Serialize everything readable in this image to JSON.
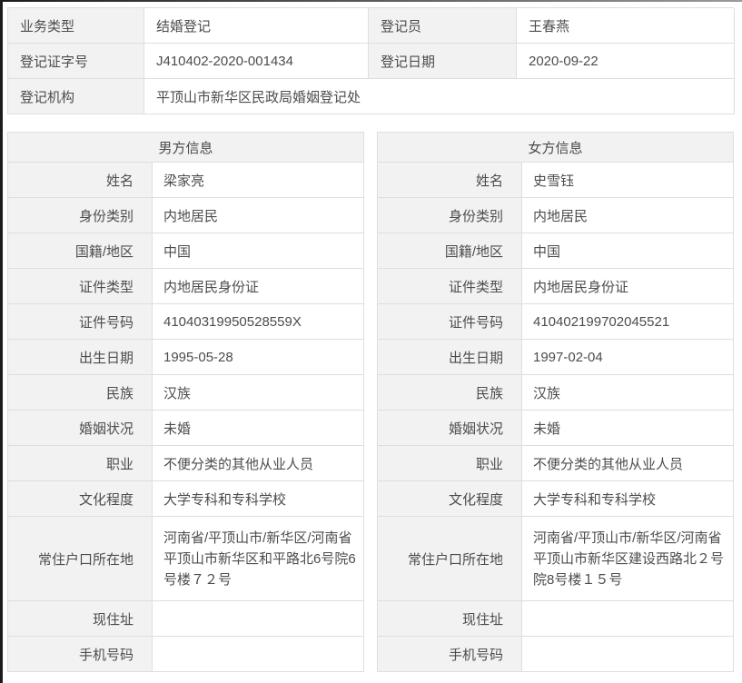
{
  "colors": {
    "label_cell_bg": "#f2f2f2",
    "cell_border": "#dedede",
    "text": "#4c4c4c",
    "frame_left": "#1c1c1c",
    "page_bg": "#ffffff"
  },
  "summary": {
    "rows": [
      {
        "label1": "业务类型",
        "value1": "结婚登记",
        "label2": "登记员",
        "value2": "王春燕"
      },
      {
        "label1": "登记证字号",
        "value1": "J410402-2020-001434",
        "label2": "登记日期",
        "value2": "2020-09-22"
      }
    ],
    "agency_label": "登记机构",
    "agency_value": "平顶山市新华区民政局婚姻登记处"
  },
  "male": {
    "title": "男方信息",
    "rows": [
      {
        "label": "姓名",
        "value": "梁家亮"
      },
      {
        "label": "身份类别",
        "value": "内地居民"
      },
      {
        "label": "国籍/地区",
        "value": "中国"
      },
      {
        "label": "证件类型",
        "value": "内地居民身份证"
      },
      {
        "label": "证件号码",
        "value": "41040319950528559X"
      },
      {
        "label": "出生日期",
        "value": "1995-05-28"
      },
      {
        "label": "民族",
        "value": "汉族"
      },
      {
        "label": "婚姻状况",
        "value": "未婚"
      },
      {
        "label": "职业",
        "value": "不便分类的其他从业人员"
      },
      {
        "label": "文化程度",
        "value": "大学专科和专科学校"
      },
      {
        "label": "常住户口所在地",
        "value": "河南省/平顶山市/新华区/河南省平顶山市新华区和平路北6号院6号楼７２号"
      },
      {
        "label": "现住址",
        "value": ""
      },
      {
        "label": "手机号码",
        "value": ""
      }
    ]
  },
  "female": {
    "title": "女方信息",
    "rows": [
      {
        "label": "姓名",
        "value": "史雪钰"
      },
      {
        "label": "身份类别",
        "value": "内地居民"
      },
      {
        "label": "国籍/地区",
        "value": "中国"
      },
      {
        "label": "证件类型",
        "value": "内地居民身份证"
      },
      {
        "label": "证件号码",
        "value": "410402199702045521"
      },
      {
        "label": "出生日期",
        "value": "1997-02-04"
      },
      {
        "label": "民族",
        "value": "汉族"
      },
      {
        "label": "婚姻状况",
        "value": "未婚"
      },
      {
        "label": "职业",
        "value": "不便分类的其他从业人员"
      },
      {
        "label": "文化程度",
        "value": "大学专科和专科学校"
      },
      {
        "label": "常住户口所在地",
        "value": "河南省/平顶山市/新华区/河南省平顶山市新华区建设西路北２号院8号楼１５号"
      },
      {
        "label": "现住址",
        "value": ""
      },
      {
        "label": "手机号码",
        "value": ""
      }
    ]
  }
}
